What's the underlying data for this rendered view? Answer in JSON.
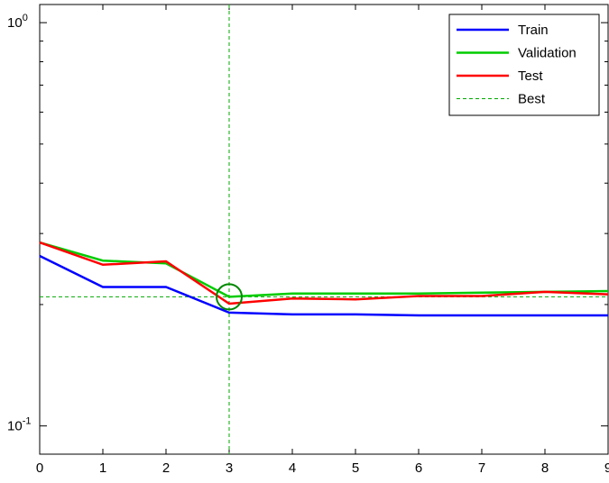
{
  "chart_data": {
    "type": "line",
    "title": "",
    "xlabel": "",
    "ylabel": "",
    "x": [
      0,
      1,
      2,
      3,
      4,
      5,
      6,
      7,
      8,
      9
    ],
    "xlim": [
      0,
      9
    ],
    "ylim": [
      0.1,
      1
    ],
    "yscale": "log",
    "xticks": [
      0,
      1,
      2,
      3,
      4,
      5,
      6,
      7,
      8,
      9
    ],
    "xtick_labels": [
      "0",
      "1",
      "2",
      "3",
      "4",
      "5",
      "6",
      "7",
      "8",
      "9"
    ],
    "yticks": [
      {
        "value": 0.1,
        "base": "10",
        "exp": "-1"
      },
      {
        "value": 1,
        "base": "10",
        "exp": "0"
      }
    ],
    "grid": false,
    "legend_position": "top-right",
    "series": [
      {
        "name": "Train",
        "color": "#0000ff",
        "style": "solid",
        "values": [
          0.264,
          0.221,
          0.221,
          0.191,
          0.189,
          0.189,
          0.188,
          0.188,
          0.188,
          0.188
        ]
      },
      {
        "name": "Validation",
        "color": "#00cc00",
        "style": "solid",
        "values": [
          0.285,
          0.257,
          0.253,
          0.209,
          0.213,
          0.213,
          0.213,
          0.214,
          0.215,
          0.216
        ]
      },
      {
        "name": "Test",
        "color": "#ff0000",
        "style": "solid",
        "values": [
          0.285,
          0.251,
          0.256,
          0.201,
          0.207,
          0.206,
          0.21,
          0.21,
          0.215,
          0.212
        ]
      }
    ],
    "best": {
      "name": "Best",
      "color": "#00aa00",
      "style": "dashed",
      "x": 3,
      "y": 0.209
    },
    "best_marker": {
      "x": 3,
      "y": 0.209,
      "color": "#008800",
      "shape": "circle"
    }
  }
}
